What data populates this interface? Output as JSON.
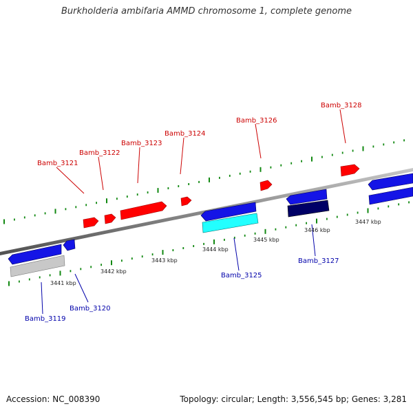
{
  "title": "Burkholderia ambifaria AMMD chromosome 1, complete genome",
  "footer": {
    "accession": "Accession: NC_008390",
    "summary": "Topology: circular; Length: 3,556,545 bp; Genes: 3,281"
  },
  "colors": {
    "forward_gene": "#ff0000",
    "reverse_gene": "#1414e6",
    "forward_label": "#cc0000",
    "reverse_label": "#0000aa",
    "tick_marks": "#118811",
    "backbone": "#808080",
    "cds_cyan": "#22ffff",
    "cds_navy": "#000066",
    "cds_grey": "#c8c8c8"
  },
  "scale_labels": [
    "3441 kbp",
    "3442 kbp",
    "3443 kbp",
    "3444 kbp",
    "3445 kbp",
    "3446 kbp",
    "3447 kbp"
  ],
  "genes": {
    "Bamb_3119": "Bamb_3119",
    "Bamb_3120": "Bamb_3120",
    "Bamb_3121": "Bamb_3121",
    "Bamb_3122": "Bamb_3122",
    "Bamb_3123": "Bamb_3123",
    "Bamb_3124": "Bamb_3124",
    "Bamb_3125": "Bamb_3125",
    "Bamb_3126": "Bamb_3126",
    "Bamb_3127": "Bamb_3127",
    "Bamb_3128": "Bamb_3128"
  }
}
